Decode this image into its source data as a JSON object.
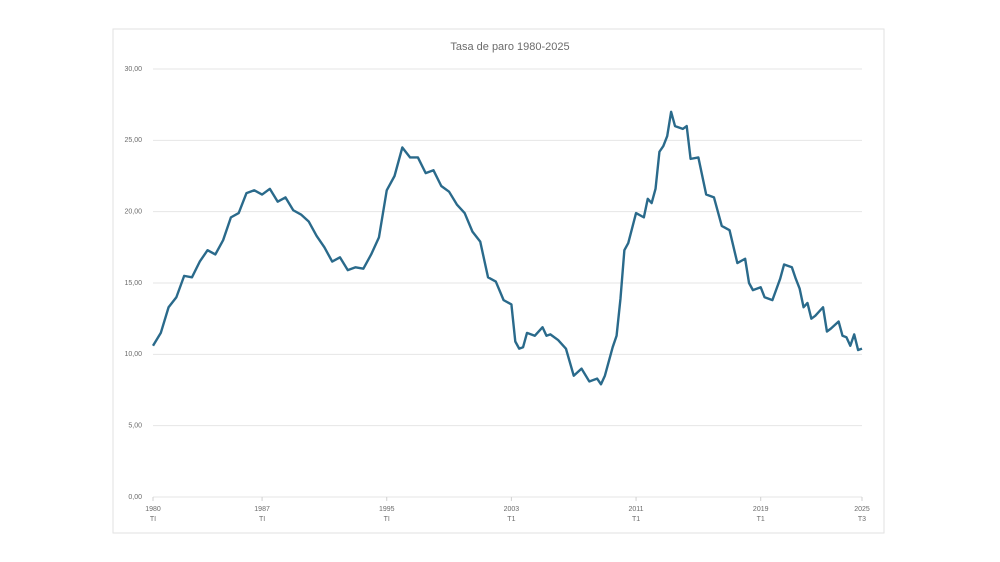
{
  "chart_data": {
    "type": "line",
    "title": "Tasa de paro 1980-2025",
    "xlim": [
      1980,
      2025.5
    ],
    "xticks": [
      {
        "value": 1980,
        "label": "1980",
        "quarter": "TI"
      },
      {
        "value": 1987,
        "label": "1987",
        "quarter": "TI"
      },
      {
        "value": 1995,
        "label": "1995",
        "quarter": "TI"
      },
      {
        "value": 2003,
        "label": "2003",
        "quarter": "T1"
      },
      {
        "value": 2011,
        "label": "2011",
        "quarter": "T1"
      },
      {
        "value": 2019,
        "label": "2019",
        "quarter": "T1"
      },
      {
        "value": 2025.5,
        "label": "2025",
        "quarter": "T3"
      }
    ],
    "ylim": [
      0,
      30
    ],
    "yticks": [
      {
        "value": 0,
        "label": "0,00"
      },
      {
        "value": 5,
        "label": "5,00"
      },
      {
        "value": 10,
        "label": "10,00"
      },
      {
        "value": 15,
        "label": "15,00"
      },
      {
        "value": 20,
        "label": "20,00"
      },
      {
        "value": 25,
        "label": "25,00"
      },
      {
        "value": 30,
        "label": "30,00"
      }
    ],
    "grid": true,
    "series": [
      {
        "color": "#2a6a8b",
        "x": [
          1980,
          1980.5,
          1981,
          1981.5,
          1982,
          1982.5,
          1983,
          1983.5,
          1984,
          1984.5,
          1985,
          1985.5,
          1986,
          1986.5,
          1987,
          1987.5,
          1988,
          1988.5,
          1989,
          1989.5,
          1990,
          1990.5,
          1991,
          1991.5,
          1992,
          1992.5,
          1993,
          1993.5,
          1994,
          1994.5,
          1995,
          1995.5,
          1996,
          1996.5,
          1997,
          1997.5,
          1998,
          1998.5,
          1999,
          1999.5,
          2000,
          2000.5,
          2001,
          2001.5,
          2002,
          2002.5,
          2003,
          2003.25,
          2003.5,
          2003.75,
          2004,
          2004.5,
          2005,
          2005.25,
          2005.5,
          2006,
          2006.5,
          2007,
          2007.5,
          2008,
          2008.5,
          2008.75,
          2009,
          2009.5,
          2009.75,
          2010,
          2010.25,
          2010.5,
          2011,
          2011.5,
          2011.75,
          2012,
          2012.25,
          2012.5,
          2012.75,
          2013,
          2013.25,
          2013.5,
          2014,
          2014.25,
          2014.5,
          2015,
          2015.5,
          2016,
          2016.5,
          2017,
          2017.5,
          2018,
          2018.25,
          2018.5,
          2019,
          2019.25,
          2019.75,
          2020.25,
          2020.5,
          2021,
          2021.25,
          2021.5,
          2021.75,
          2022,
          2022.25,
          2022.5,
          2023,
          2023.25,
          2023.5,
          2024,
          2024.25,
          2024.5,
          2024.75,
          2025,
          2025.25,
          2025.5
        ],
        "values": [
          10.6,
          11.5,
          13.3,
          14.0,
          15.5,
          15.4,
          16.5,
          17.3,
          17.0,
          18.0,
          19.6,
          19.9,
          21.3,
          21.5,
          21.2,
          21.6,
          20.7,
          21.0,
          20.1,
          19.8,
          19.3,
          18.3,
          17.5,
          16.5,
          16.8,
          15.9,
          16.1,
          16.0,
          17.0,
          18.2,
          21.5,
          22.5,
          24.5,
          23.8,
          23.8,
          22.7,
          22.9,
          21.8,
          21.4,
          20.5,
          19.9,
          18.6,
          17.9,
          15.4,
          15.1,
          13.8,
          13.5,
          10.9,
          10.4,
          10.5,
          11.5,
          11.3,
          11.9,
          11.3,
          11.4,
          11.0,
          10.4,
          8.5,
          9.0,
          8.1,
          8.3,
          7.9,
          8.5,
          10.5,
          11.3,
          13.9,
          17.3,
          17.8,
          19.9,
          19.6,
          20.9,
          20.6,
          21.6,
          24.2,
          24.6,
          25.3,
          27.0,
          26.0,
          25.8,
          26.0,
          23.7,
          23.8,
          21.2,
          21.0,
          19.0,
          18.7,
          16.4,
          16.7,
          15.0,
          14.5,
          14.7,
          14.0,
          13.8,
          15.3,
          16.3,
          16.1,
          15.3,
          14.6,
          13.3,
          13.6,
          12.5,
          12.7,
          13.3,
          11.6,
          11.8,
          12.3,
          11.3,
          11.2,
          10.6,
          11.4,
          10.3,
          10.4
        ]
      }
    ]
  }
}
